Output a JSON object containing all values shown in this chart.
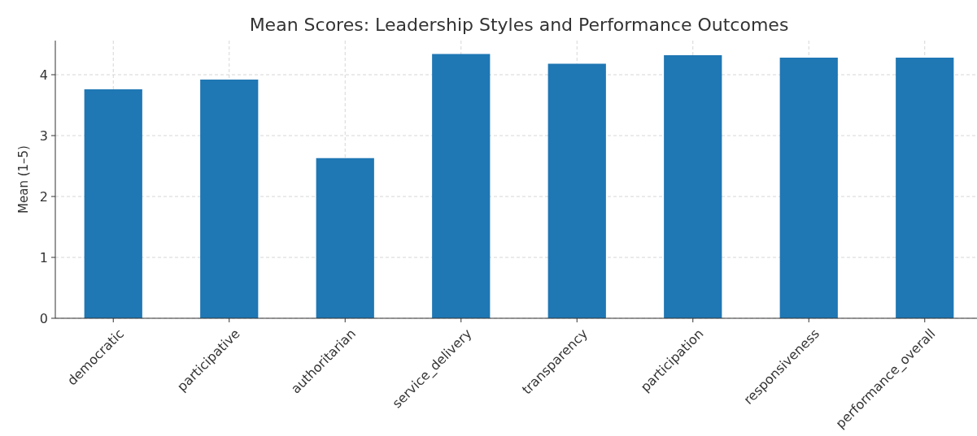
{
  "chart_data": {
    "type": "bar",
    "title": "Mean Scores: Leadership Styles and Performance Outcomes",
    "ylabel": "Mean (1–5)",
    "categories": [
      "democratic",
      "participative",
      "authoritarian",
      "service_delivery",
      "transparency",
      "participation",
      "responsiveness",
      "performance_overall"
    ],
    "values": [
      3.76,
      3.92,
      2.63,
      4.34,
      4.18,
      4.32,
      4.28,
      4.28
    ],
    "color": "#1f77b4",
    "ylim": [
      0,
      4.56
    ],
    "yticks": [
      0,
      1,
      2,
      3,
      4
    ],
    "grid": true
  }
}
